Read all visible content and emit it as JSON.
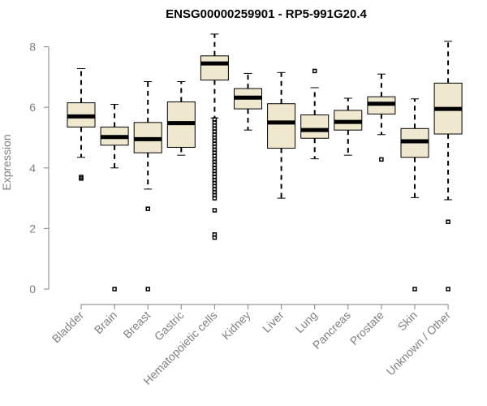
{
  "chart_data": {
    "type": "boxplot",
    "title": "ENSG00000259901 - RP5-991G20.4",
    "ylabel": "Expression",
    "xlabel": "",
    "ylim": [
      0,
      8.5
    ],
    "yticks": [
      0,
      2,
      4,
      6,
      8
    ],
    "colors": {
      "box_fill": "#f0e8ce",
      "axis": "#808080"
    },
    "categories": [
      "Bladder",
      "Brain",
      "Breast",
      "Gastric",
      "Hematopoietic cells",
      "Kidney",
      "Liver",
      "Lung",
      "Pancreas",
      "Prostate",
      "Skin",
      "Unknown / Other"
    ],
    "boxes": [
      {
        "min": 4.35,
        "q1": 5.35,
        "median": 5.7,
        "q3": 6.15,
        "max": 7.28,
        "outliers": [
          3.65,
          3.7
        ]
      },
      {
        "min": 4.0,
        "q1": 4.75,
        "median": 5.02,
        "q3": 5.35,
        "max": 6.1,
        "outliers": [
          0
        ]
      },
      {
        "min": 3.3,
        "q1": 4.5,
        "median": 4.95,
        "q3": 5.5,
        "max": 6.85,
        "outliers": [
          2.65,
          0
        ]
      },
      {
        "min": 4.42,
        "q1": 4.68,
        "median": 5.48,
        "q3": 6.18,
        "max": 6.85,
        "outliers": []
      },
      {
        "min": 5.65,
        "q1": 6.9,
        "median": 7.45,
        "q3": 7.7,
        "max": 8.42,
        "outliers": [
          5.6,
          5.5,
          5.4,
          5.3,
          5.2,
          5.1,
          5.0,
          4.9,
          4.8,
          4.7,
          4.6,
          4.5,
          4.4,
          4.3,
          4.2,
          4.1,
          4.0,
          3.9,
          3.8,
          3.7,
          3.6,
          3.5,
          3.4,
          3.3,
          3.2,
          3.1,
          3.0,
          2.6,
          1.8,
          1.7
        ]
      },
      {
        "min": 5.25,
        "q1": 5.95,
        "median": 6.32,
        "q3": 6.62,
        "max": 7.12,
        "outliers": []
      },
      {
        "min": 3.0,
        "q1": 4.65,
        "median": 5.5,
        "q3": 6.12,
        "max": 7.15,
        "outliers": []
      },
      {
        "min": 4.3,
        "q1": 4.98,
        "median": 5.25,
        "q3": 5.75,
        "max": 6.65,
        "outliers": [
          7.2
        ]
      },
      {
        "min": 4.42,
        "q1": 5.25,
        "median": 5.52,
        "q3": 5.9,
        "max": 6.3,
        "outliers": []
      },
      {
        "min": 5.1,
        "q1": 5.78,
        "median": 6.12,
        "q3": 6.35,
        "max": 7.1,
        "outliers": [
          4.28
        ]
      },
      {
        "min": 3.02,
        "q1": 4.35,
        "median": 4.88,
        "q3": 5.3,
        "max": 6.28,
        "outliers": [
          0
        ]
      },
      {
        "min": 2.95,
        "q1": 5.12,
        "median": 5.95,
        "q3": 6.8,
        "max": 8.18,
        "outliers": [
          2.22,
          0
        ]
      }
    ]
  }
}
